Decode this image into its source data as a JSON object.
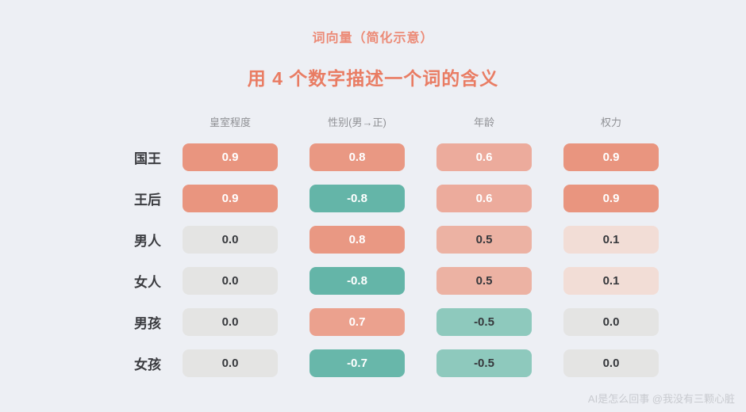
{
  "chart_data": {
    "type": "heatmap",
    "title": "词向量（简化示意）",
    "subtitle": "用 4 个数字描述一个词的含义",
    "columns": [
      "皇室程度",
      "性别(男→正)",
      "年龄",
      "权力"
    ],
    "rows": [
      {
        "label": "国王",
        "values": [
          0.9,
          0.8,
          0.6,
          0.9
        ]
      },
      {
        "label": "王后",
        "values": [
          0.9,
          -0.8,
          0.6,
          0.9
        ]
      },
      {
        "label": "男人",
        "values": [
          0.0,
          0.8,
          0.5,
          0.1
        ]
      },
      {
        "label": "女人",
        "values": [
          0.0,
          -0.8,
          0.5,
          0.1
        ]
      },
      {
        "label": "男孩",
        "values": [
          0.0,
          0.7,
          -0.5,
          0.0
        ]
      },
      {
        "label": "女孩",
        "values": [
          0.0,
          -0.7,
          -0.5,
          0.0
        ]
      }
    ],
    "value_decimals": 1,
    "legend": "none",
    "grid": "off"
  },
  "watermark": "AI是怎么回事 @我没有三颗心脏",
  "colors": {
    "background": "#edeff4",
    "title_text": "#ec8a76",
    "subtitle_text": "#e97c63",
    "column_header_text": "#8f9094",
    "row_label_text": "#3a3b3f",
    "cell_text_light": "#ffffff",
    "cell_text_dark": "#36383c",
    "watermark_text": "#c8cacf",
    "positive_scale": {
      "0.9": "#e9957f",
      "0.8": "#e99883",
      "0.7": "#eba18e",
      "0.6": "#ecab9c",
      "0.5": "#ecb2a3",
      "0.1": "#f2ddd6"
    },
    "negative_scale": {
      "0.8": "#64b5a8",
      "0.7": "#68b7aa",
      "0.5": "#8ec9bd"
    },
    "zero_color": "#e4e4e3",
    "light_text_threshold": 0.6
  }
}
